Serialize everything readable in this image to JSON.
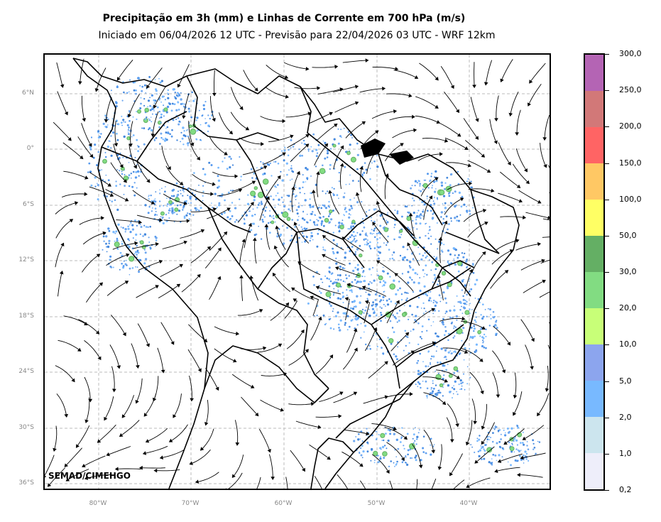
{
  "header": {
    "title": "Precipitação em 3h (mm) e Linhas de Corrente em 700 hPa (m/s)",
    "subtitle": "Iniciado em 06/04/2026 12 UTC - Previsão para 22/04/2026 03 UTC - WRF 12km"
  },
  "map": {
    "lat_labels": [
      "6°N",
      "0°",
      "6°S",
      "12°S",
      "18°S",
      "24°S",
      "30°S",
      "36°S"
    ],
    "lon_labels": [
      "80°W",
      "70°W",
      "60°W",
      "50°W",
      "40°W"
    ],
    "gridlines": "dashed",
    "watermark": "SEMAD/CIMEHGO"
  },
  "colorbar": {
    "labels": [
      "0,2",
      "1,0",
      "2,0",
      "5,0",
      "10,0",
      "20,0",
      "30,0",
      "50,0",
      "100,0",
      "150,0",
      "200,0",
      "250,0",
      "300,0"
    ],
    "colors": [
      "#eeeefa",
      "#cce5ee",
      "#78b9ff",
      "#8ca5ee",
      "#c8ff78",
      "#82dc82",
      "#64af64",
      "#ffff64",
      "#ffc864",
      "#ff6464",
      "#d27878",
      "#b464b4"
    ]
  }
}
